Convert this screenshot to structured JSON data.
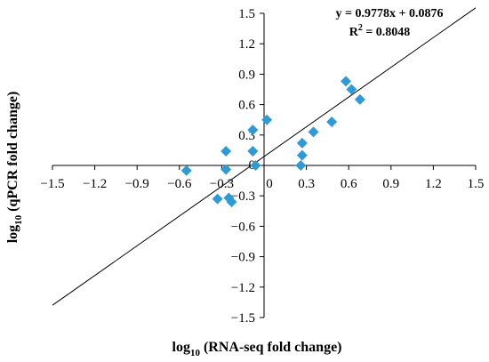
{
  "chart_data": {
    "type": "scatter",
    "title": "",
    "xlabel": {
      "prefix": "log",
      "sub": "10",
      "rest": " (RNA-seq fold change)"
    },
    "ylabel": {
      "prefix": "log",
      "sub": "10",
      "rest": " (qPCR fold change)"
    },
    "xlim": [
      -1.5,
      1.5
    ],
    "ylim": [
      -1.5,
      1.5
    ],
    "xticks": [
      -1.5,
      -1.2,
      -0.9,
      -0.6,
      -0.3,
      0,
      0.3,
      0.6,
      0.9,
      1.2,
      1.5
    ],
    "yticks": [
      -1.5,
      -1.2,
      -0.9,
      -0.6,
      -0.3,
      0,
      0.3,
      0.6,
      0.9,
      1.2,
      1.5
    ],
    "xtick_labels": [
      "−1.5",
      "−1.2",
      "−0.9",
      "−0.6",
      "−0.3",
      "0",
      "0.3",
      "0.6",
      "0.9",
      "1.2",
      "1.5"
    ],
    "ytick_labels": [
      "−1.5",
      "−1.2",
      "−0.9",
      "−0.6",
      "−0.3",
      "0",
      "0.3",
      "0.6",
      "0.9",
      "1.2",
      "1.5"
    ],
    "grid": false,
    "marker": "diamond",
    "marker_color": "#2e9bd6",
    "points": [
      {
        "x": -0.55,
        "y": -0.05
      },
      {
        "x": -0.33,
        "y": -0.33
      },
      {
        "x": -0.27,
        "y": 0.14
      },
      {
        "x": -0.27,
        "y": -0.04
      },
      {
        "x": -0.25,
        "y": -0.32
      },
      {
        "x": -0.23,
        "y": -0.36
      },
      {
        "x": -0.08,
        "y": 0.35
      },
      {
        "x": -0.08,
        "y": 0.14
      },
      {
        "x": -0.06,
        "y": 0.0
      },
      {
        "x": 0.02,
        "y": 0.45
      },
      {
        "x": 0.26,
        "y": 0.0
      },
      {
        "x": 0.27,
        "y": 0.22
      },
      {
        "x": 0.27,
        "y": 0.1
      },
      {
        "x": 0.35,
        "y": 0.33
      },
      {
        "x": 0.48,
        "y": 0.43
      },
      {
        "x": 0.58,
        "y": 0.83
      },
      {
        "x": 0.62,
        "y": 0.75
      },
      {
        "x": 0.68,
        "y": 0.65
      }
    ],
    "trendline": {
      "slope": 0.9778,
      "intercept": 0.0876,
      "x_range": [
        -1.5,
        1.5
      ]
    },
    "annotations": {
      "equation": "y = 0.9778x + 0.0876",
      "r2_prefix": "R",
      "r2_sup": "2",
      "r2_rest": " = 0.8048"
    }
  }
}
